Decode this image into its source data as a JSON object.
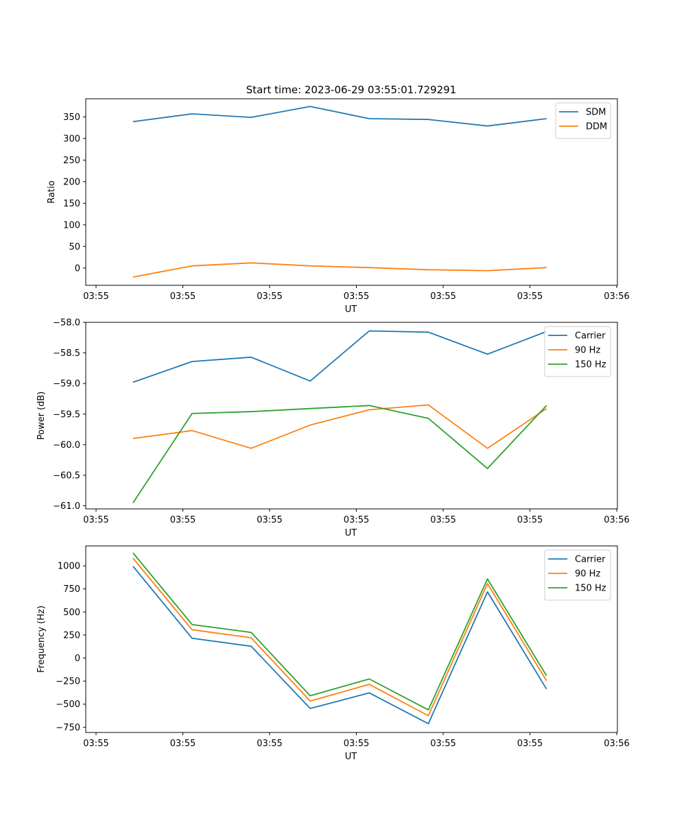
{
  "figure": {
    "title": "Start time: 2023-06-29 03:55:01.729291"
  },
  "colors": {
    "blue": "#1f77b4",
    "orange": "#ff7f0e",
    "green": "#2ca02c"
  },
  "chart_data": [
    {
      "type": "line",
      "xlabel": "UT",
      "ylabel": "Ratio",
      "x_tick_labels": [
        "03:55",
        "03:55",
        "03:55",
        "03:55",
        "03:55",
        "03:55",
        "03:56"
      ],
      "x": [
        1,
        2,
        3,
        4,
        5,
        6,
        7,
        8
      ],
      "xlim": [
        0.2,
        9.2
      ],
      "ylim": [
        -40,
        392
      ],
      "y_ticks": [
        0,
        50,
        100,
        150,
        200,
        250,
        300,
        350
      ],
      "grid": false,
      "legend_position": "top-right",
      "series": [
        {
          "name": "SDM",
          "color": "#1f77b4",
          "values": [
            339,
            357,
            349,
            374,
            346,
            344,
            329,
            346
          ]
        },
        {
          "name": "DDM",
          "color": "#ff7f0e",
          "values": [
            -21,
            5,
            12,
            5,
            1,
            -4,
            -6,
            1
          ]
        }
      ]
    },
    {
      "type": "line",
      "xlabel": "UT",
      "ylabel": "Power (dB)",
      "x_tick_labels": [
        "03:55",
        "03:55",
        "03:55",
        "03:55",
        "03:55",
        "03:55",
        "03:56"
      ],
      "x": [
        1,
        2,
        3,
        4,
        5,
        6,
        7,
        8
      ],
      "xlim": [
        0.2,
        9.2
      ],
      "ylim": [
        -61.05,
        -58.0
      ],
      "y_ticks": [
        -61.0,
        -60.5,
        -60.0,
        -59.5,
        -59.0,
        -58.5,
        -58.0
      ],
      "y_tick_labels": [
        "−61.0",
        "−60.5",
        "−60.0",
        "−59.5",
        "−59.0",
        "−58.5",
        "−58.0"
      ],
      "grid": false,
      "legend_position": "top-right",
      "series": [
        {
          "name": "Carrier",
          "color": "#1f77b4",
          "values": [
            -58.98,
            -58.64,
            -58.57,
            -58.96,
            -58.14,
            -58.16,
            -58.52,
            -58.15
          ]
        },
        {
          "name": "90 Hz",
          "color": "#ff7f0e",
          "values": [
            -59.9,
            -59.77,
            -60.06,
            -59.68,
            -59.43,
            -59.35,
            -60.06,
            -59.41
          ]
        },
        {
          "name": "150 Hz",
          "color": "#2ca02c",
          "values": [
            -60.95,
            -59.49,
            -59.46,
            -59.41,
            -59.36,
            -59.57,
            -60.39,
            -59.36
          ]
        }
      ]
    },
    {
      "type": "line",
      "xlabel": "UT",
      "ylabel": "Frequency (Hz)",
      "x_tick_labels": [
        "03:55",
        "03:55",
        "03:55",
        "03:55",
        "03:55",
        "03:55",
        "03:56"
      ],
      "x": [
        1,
        2,
        3,
        4,
        5,
        6,
        7,
        8
      ],
      "xlim": [
        0.2,
        9.2
      ],
      "ylim": [
        -807,
        1216
      ],
      "y_ticks": [
        -750,
        -500,
        -250,
        0,
        250,
        500,
        750,
        1000
      ],
      "y_tick_labels": [
        "−750",
        "−500",
        "−250",
        "0",
        "250",
        "500",
        "750",
        "1000"
      ],
      "grid": false,
      "legend_position": "top-right",
      "series": [
        {
          "name": "Carrier",
          "color": "#1f77b4",
          "values": [
            995,
            215,
            128,
            -547,
            -378,
            -712,
            718,
            -336
          ]
        },
        {
          "name": "90 Hz",
          "color": "#ff7f0e",
          "values": [
            1082,
            307,
            220,
            -466,
            -285,
            -625,
            808,
            -247
          ]
        },
        {
          "name": "150 Hz",
          "color": "#2ca02c",
          "values": [
            1140,
            364,
            278,
            -409,
            -227,
            -562,
            858,
            -192
          ]
        }
      ]
    }
  ]
}
